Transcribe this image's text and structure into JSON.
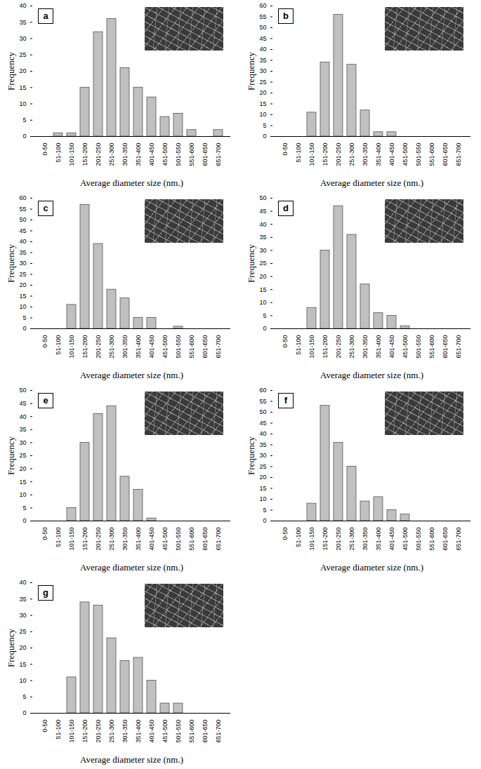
{
  "chart_data": [
    {
      "type": "bar",
      "title": "a",
      "color": "#c0c0c0",
      "xlabel": "Average diameter size (nm.)",
      "ylabel": "Frequency",
      "categories": [
        "0-50",
        "51-100",
        "101-150",
        "151-200",
        "201-250",
        "251-300",
        "301-350",
        "351-400",
        "401-450",
        "451-500",
        "501-550",
        "551-600",
        "601-650",
        "651-700"
      ],
      "values": [
        0,
        1,
        1,
        15,
        32,
        36,
        21,
        15,
        12,
        6,
        7,
        2,
        0,
        2
      ],
      "ylim": [
        0,
        40
      ],
      "yticks": [
        0,
        5,
        10,
        15,
        20,
        25,
        30,
        35,
        40
      ]
    },
    {
      "type": "bar",
      "title": "b",
      "color": "#c0c0c0",
      "xlabel": "Average diameter size (nm.)",
      "ylabel": "Frequency",
      "categories": [
        "0-50",
        "51-100",
        "101-150",
        "151-200",
        "201-250",
        "251-300",
        "301-350",
        "351-400",
        "401-450",
        "451-500",
        "501-550",
        "551-600",
        "601-650",
        "651-700"
      ],
      "values": [
        0,
        0,
        11,
        34,
        56,
        33,
        12,
        2,
        2,
        0,
        0,
        0,
        0,
        0
      ],
      "ylim": [
        0,
        60
      ],
      "yticks": [
        0,
        5,
        10,
        15,
        20,
        25,
        30,
        35,
        40,
        45,
        50,
        55,
        60
      ]
    },
    {
      "type": "bar",
      "title": "c",
      "color": "#c0c0c0",
      "xlabel": "Average diameter size (nm.)",
      "ylabel": "Frequency",
      "categories": [
        "0-50",
        "51-100",
        "101-150",
        "151-200",
        "201-250",
        "251-300",
        "301-350",
        "351-400",
        "401-450",
        "451-500",
        "501-550",
        "551-600",
        "601-650",
        "651-700"
      ],
      "values": [
        0,
        0,
        11,
        57,
        39,
        18,
        14,
        5,
        5,
        0,
        1,
        0,
        0,
        0
      ],
      "ylim": [
        0,
        60
      ],
      "yticks": [
        0,
        5,
        10,
        15,
        20,
        25,
        30,
        35,
        40,
        45,
        50,
        55,
        60
      ]
    },
    {
      "type": "bar",
      "title": "d",
      "color": "#c0c0c0",
      "xlabel": "Average diameter size (nm.)",
      "ylabel": "Frequency",
      "categories": [
        "0-50",
        "51-100",
        "101-150",
        "151-200",
        "201-250",
        "251-300",
        "301-350",
        "351-400",
        "401-450",
        "451-500",
        "501-550",
        "551-600",
        "601-650",
        "651-700"
      ],
      "values": [
        0,
        0,
        8,
        30,
        47,
        36,
        17,
        6,
        5,
        1,
        0,
        0,
        0,
        0
      ],
      "ylim": [
        0,
        50
      ],
      "yticks": [
        0,
        5,
        10,
        15,
        20,
        25,
        30,
        35,
        40,
        45,
        50
      ]
    },
    {
      "type": "bar",
      "title": "e",
      "color": "#c0c0c0",
      "xlabel": "Average diameter size (nm.)",
      "ylabel": "Frequency",
      "categories": [
        "0-50",
        "51-100",
        "101-150",
        "151-200",
        "201-250",
        "251-300",
        "301-350",
        "351-400",
        "401-450",
        "451-500",
        "501-550",
        "551-600",
        "601-650",
        "651-700"
      ],
      "values": [
        0,
        0,
        5,
        30,
        41,
        44,
        17,
        12,
        1,
        0,
        0,
        0,
        0,
        0
      ],
      "ylim": [
        0,
        50
      ],
      "yticks": [
        0,
        5,
        10,
        15,
        20,
        25,
        30,
        35,
        40,
        45,
        50
      ]
    },
    {
      "type": "bar",
      "title": "f",
      "color": "#c0c0c0",
      "xlabel": "Average diameter size (nm.)",
      "ylabel": "Frequency",
      "categories": [
        "0-50",
        "51-100",
        "101-150",
        "151-200",
        "201-250",
        "251-300",
        "301-350",
        "351-400",
        "401-450",
        "451-500",
        "501-550",
        "551-600",
        "601-650",
        "651-700"
      ],
      "values": [
        0,
        0,
        8,
        53,
        36,
        25,
        9,
        11,
        5,
        3,
        0,
        0,
        0,
        0
      ],
      "ylim": [
        0,
        60
      ],
      "yticks": [
        0,
        5,
        10,
        15,
        20,
        25,
        30,
        35,
        40,
        45,
        50,
        55,
        60
      ]
    },
    {
      "type": "bar",
      "title": "g",
      "color": "#c0c0c0",
      "xlabel": "Average diameter size (nm.)",
      "ylabel": "Frequency",
      "categories": [
        "0-50",
        "51-100",
        "101-150",
        "151-200",
        "201-250",
        "251-300",
        "301-350",
        "351-400",
        "401-450",
        "451-500",
        "501-550",
        "551-600",
        "601-650",
        "651-700"
      ],
      "values": [
        0,
        0,
        11,
        34,
        33,
        23,
        16,
        17,
        10,
        3,
        3,
        0,
        0,
        0
      ],
      "ylim": [
        0,
        40
      ],
      "yticks": [
        0,
        5,
        10,
        15,
        20,
        25,
        30,
        35,
        40
      ]
    }
  ]
}
